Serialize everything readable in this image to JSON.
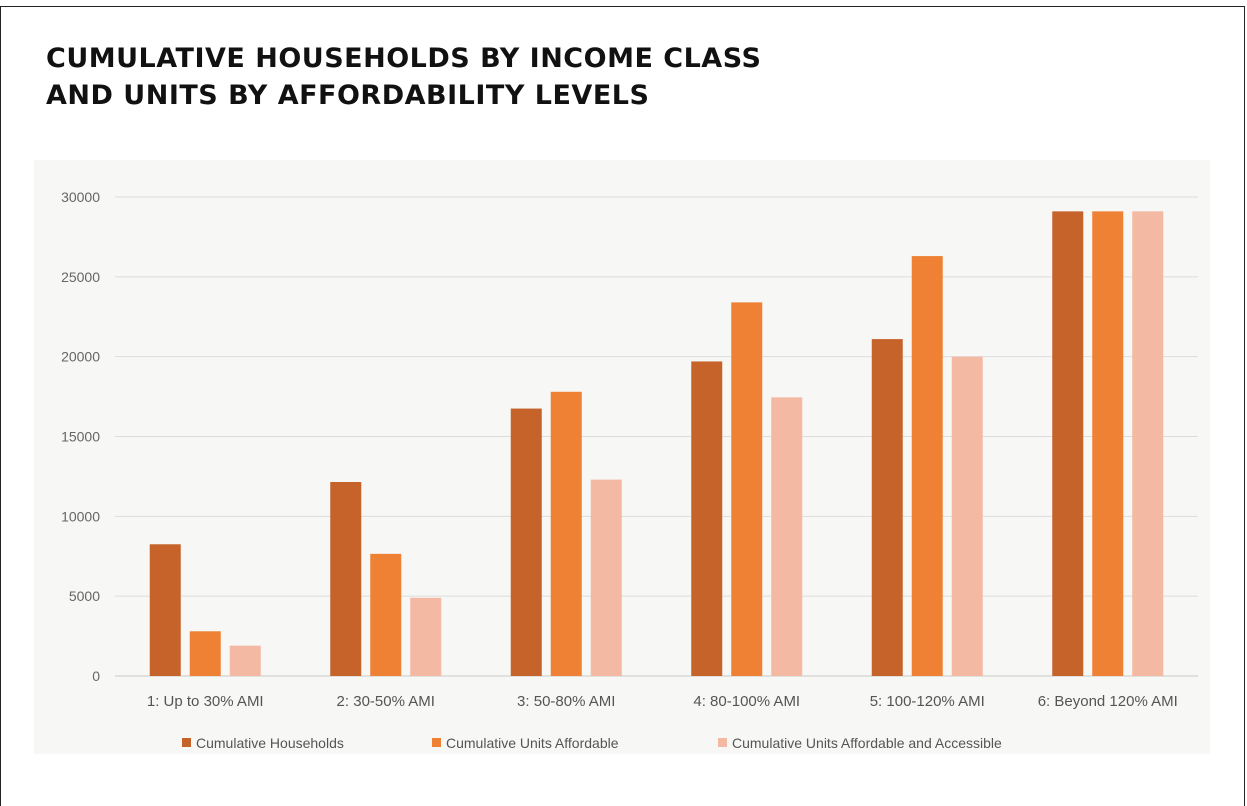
{
  "title": {
    "line1": "CUMULATIVE HOUSEHOLDS BY INCOME CLASS",
    "line2": "AND UNITS BY AFFORDABILITY LEVELS"
  },
  "chart_data": {
    "type": "bar",
    "categories": [
      "1: Up to 30% AMI",
      "2: 30-50% AMI",
      "3: 50-80% AMI",
      "4: 80-100% AMI",
      "5: 100-120% AMI",
      "6: Beyond 120% AMI"
    ],
    "series": [
      {
        "name": "Cumulative Households",
        "color": "#c5632a",
        "values": [
          8250,
          12150,
          16750,
          19700,
          21100,
          29100
        ]
      },
      {
        "name": "Cumulative Units Affordable",
        "color": "#ee8134",
        "values": [
          2800,
          7650,
          17800,
          23400,
          26300,
          29100
        ]
      },
      {
        "name": "Cumulative Units Affordable and Accessible",
        "color": "#f3b9a2",
        "values": [
          1900,
          4900,
          12300,
          17450,
          20000,
          29100
        ]
      }
    ],
    "yticks": [
      0,
      5000,
      10000,
      15000,
      20000,
      25000,
      30000
    ],
    "ylim": [
      0,
      30000
    ],
    "grid": true,
    "legend": "bottom"
  }
}
